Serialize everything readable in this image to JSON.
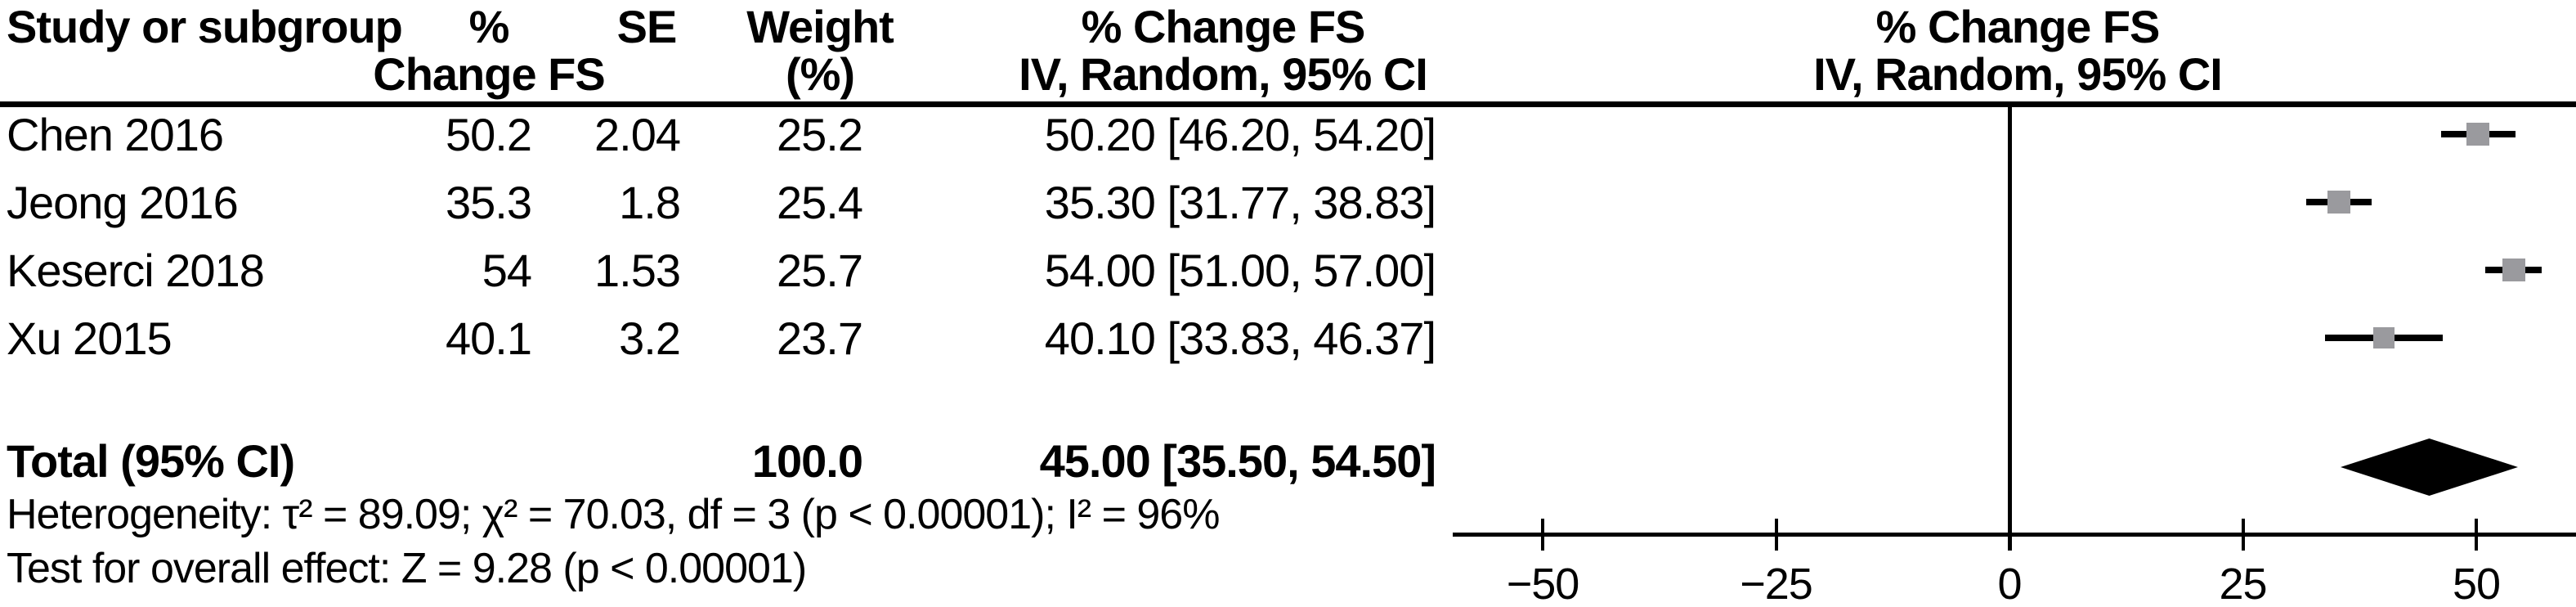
{
  "page": {
    "background": "#ffffff",
    "text_color": "#000000",
    "square_color": "#9a9a9e",
    "line_color": "#000000"
  },
  "table": {
    "headers": {
      "study": "Study or subgroup",
      "pct_line1": "%",
      "pct_line2": "Change FS",
      "se": "SE",
      "weight_line1": "Weight",
      "weight_line2": "(%)",
      "ci_line1": "% Change FS",
      "ci_line2": "IV, Random, 95% CI"
    },
    "plot_headers": {
      "line1": "% Change FS",
      "line2": "IV, Random, 95% CI"
    },
    "rows": [
      {
        "study": "Chen 2016",
        "pct_change": "50.2",
        "se": "2.04",
        "weight": "25.2",
        "ci_text": "50.20 [46.20, 54.20]"
      },
      {
        "study": "Jeong 2016",
        "pct_change": "35.3",
        "se": "1.8",
        "weight": "25.4",
        "ci_text": "35.30 [31.77, 38.83]"
      },
      {
        "study": "Keserci 2018",
        "pct_change": "54",
        "se": "1.53",
        "weight": "25.7",
        "ci_text": "54.00 [51.00, 57.00]"
      },
      {
        "study": "Xu 2015",
        "pct_change": "40.1",
        "se": "3.2",
        "weight": "23.7",
        "ci_text": "40.10 [33.83, 46.37]"
      }
    ],
    "total": {
      "label": "Total (95% CI)",
      "weight": "100.0",
      "ci_text": "45.00 [35.50, 54.50]"
    }
  },
  "footnotes": {
    "heterogeneity": "Heterogeneity: τ² = 89.09; χ² = 70.03, df = 3 (p < 0.00001); I² = 96%",
    "overall_effect": "Test for overall effect: Z = 9.28 (p < 0.00001)"
  },
  "chart_data": {
    "type": "forest",
    "effect_label": "% Change FS",
    "model_label": "IV, Random, 95% CI",
    "x_axis": {
      "ticks": [
        -50,
        -25,
        0,
        25,
        50
      ],
      "range": [
        -59.6,
        60.7
      ],
      "zero_line_at": 0,
      "grid": false
    },
    "studies": [
      {
        "name": "Chen 2016",
        "estimate": 50.2,
        "ci_low": 46.2,
        "ci_high": 54.2,
        "weight_pct": 25.2
      },
      {
        "name": "Jeong 2016",
        "estimate": 35.3,
        "ci_low": 31.77,
        "ci_high": 38.83,
        "weight_pct": 25.4
      },
      {
        "name": "Keserci 2018",
        "estimate": 54.0,
        "ci_low": 51.0,
        "ci_high": 57.0,
        "weight_pct": 25.7
      },
      {
        "name": "Xu 2015",
        "estimate": 40.1,
        "ci_low": 33.83,
        "ci_high": 46.37,
        "weight_pct": 23.7
      }
    ],
    "total": {
      "estimate": 45.0,
      "ci_low": 35.5,
      "ci_high": 54.5,
      "weight_pct": 100.0
    },
    "heterogeneity": {
      "tau2": 89.09,
      "chi2": 70.03,
      "df": 3,
      "p": "< 0.00001",
      "I2_pct": 96
    },
    "overall_effect": {
      "Z": 9.28,
      "p": "< 0.00001"
    }
  }
}
